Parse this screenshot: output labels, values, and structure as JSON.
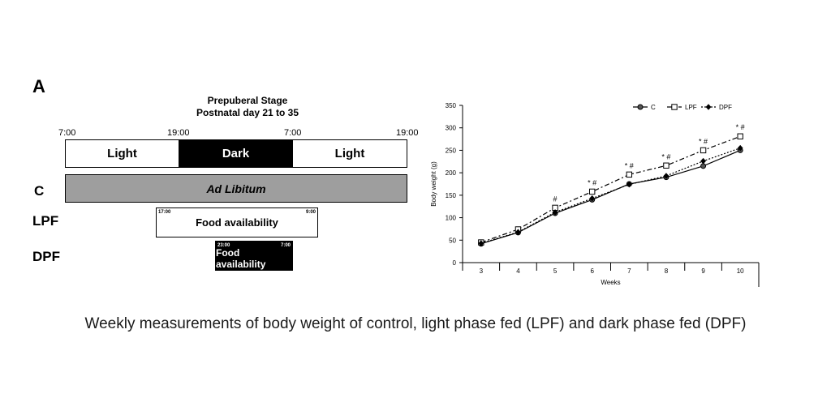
{
  "panel_label": "A",
  "schedule": {
    "title_line1": "Prepuberal Stage",
    "title_line2": "Postnatal day 21 to 35",
    "times": [
      "7:00",
      "19:00",
      "7:00",
      "19:00"
    ],
    "phases": [
      "Light",
      "Dark",
      "Light"
    ],
    "rows": [
      {
        "label": "C",
        "bar_text": "Ad Libitum"
      },
      {
        "label": "LPF",
        "bar_text": "Food availability",
        "start": "17:00",
        "end": "9:00"
      },
      {
        "label": "DPF",
        "bar_text": "Food availability",
        "start": "23:00",
        "end": "7:00"
      }
    ]
  },
  "chart_data": {
    "type": "line",
    "xlabel": "Weeks",
    "ylabel": "Body weight (g)",
    "categories": [
      "3",
      "4",
      "5",
      "6",
      "7",
      "8",
      "9",
      "10"
    ],
    "ylim": [
      0,
      350
    ],
    "yticks": [
      0,
      50,
      100,
      150,
      200,
      250,
      300,
      350
    ],
    "legend_position": "top-right",
    "series": [
      {
        "name": "C",
        "values": [
          42,
          67,
          110,
          140,
          175,
          190,
          215,
          250
        ]
      },
      {
        "name": "LPF",
        "values": [
          45,
          74,
          122,
          158,
          196,
          216,
          250,
          281
        ]
      },
      {
        "name": "DPF",
        "values": [
          43,
          68,
          112,
          143,
          174,
          193,
          226,
          255
        ]
      }
    ],
    "annotations": [
      "#",
      "* #",
      "* #",
      "* #",
      "* #",
      "* #"
    ],
    "annotation_weeks": [
      "5",
      "6",
      "7",
      "8",
      "9",
      "10"
    ]
  },
  "caption": "Weekly measurements of body weight of control, light phase fed (LPF) and dark phase fed (DPF)"
}
